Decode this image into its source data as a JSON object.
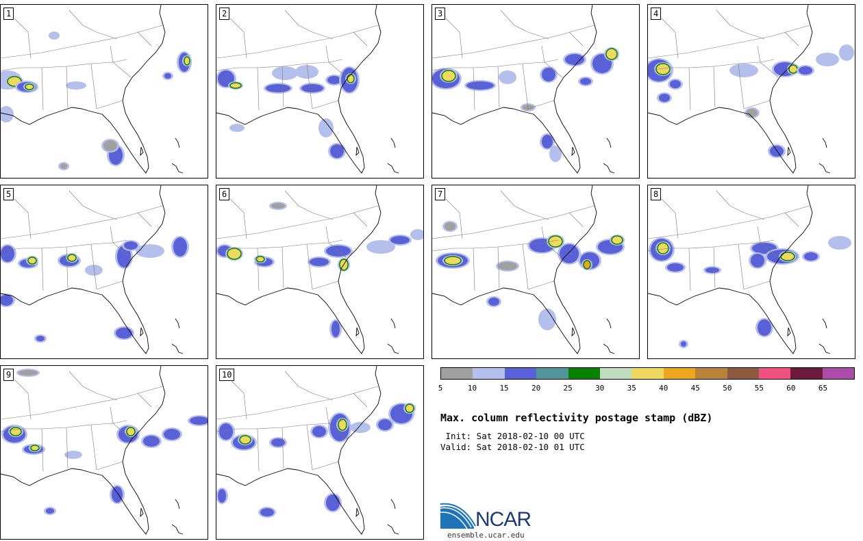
{
  "panels": [
    {
      "label": "1"
    },
    {
      "label": "2"
    },
    {
      "label": "3"
    },
    {
      "label": "4"
    },
    {
      "label": "5"
    },
    {
      "label": "6"
    },
    {
      "label": "7"
    },
    {
      "label": "8"
    },
    {
      "label": "9"
    },
    {
      "label": "10"
    }
  ],
  "colorbar": {
    "colors": [
      "#a0a0a0",
      "#b4bfec",
      "#5a61d6",
      "#4f9599",
      "#0a8000",
      "#c0dcbf",
      "#eed85f",
      "#eba81e",
      "#b9823a",
      "#8b5a40",
      "#ef5280",
      "#6c1a3e",
      "#aa4ca8"
    ],
    "ticks": [
      "5",
      "10",
      "15",
      "20",
      "25",
      "30",
      "35",
      "40",
      "45",
      "50",
      "55",
      "60",
      "65"
    ]
  },
  "title": "Max. column reflectivity postage stamp (dBZ)",
  "init": " Init: Sat 2018-02-10 00 UTC",
  "valid": "Valid: Sat 2018-02-10 01 UTC",
  "logo": {
    "name": "NCAR",
    "url": "ensemble.ucar.edu"
  }
}
